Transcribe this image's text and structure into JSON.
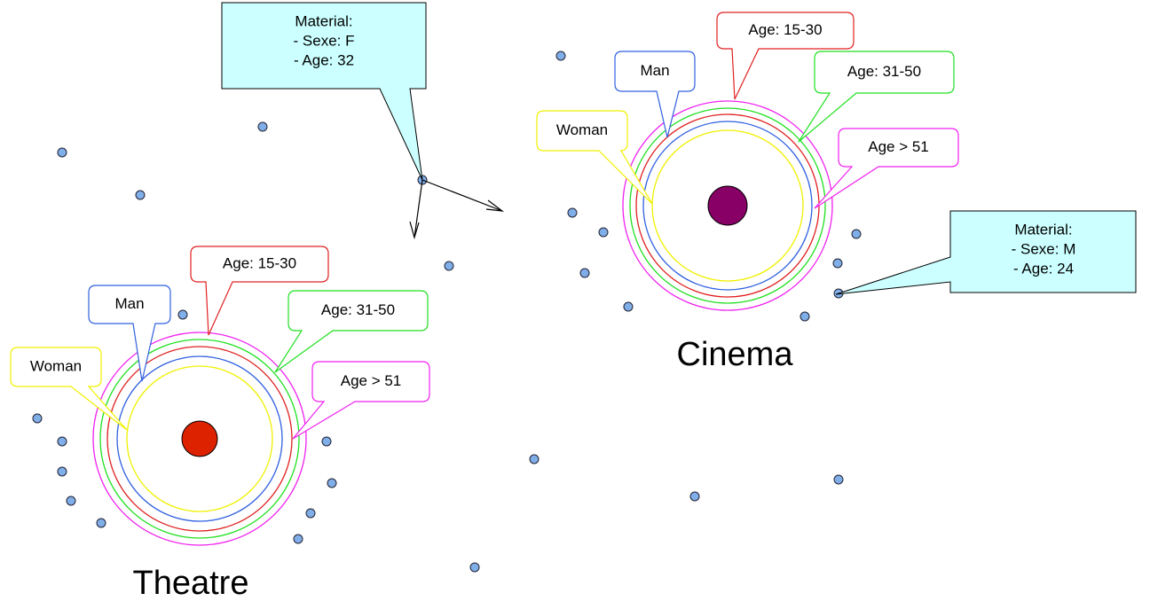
{
  "venues": [
    {
      "name": "Theatre",
      "labels": [
        "Woman",
        "Man",
        "Age: 15-30",
        "Age: 31-50",
        "Age > 51"
      ]
    },
    {
      "name": "Cinema",
      "labels": [
        "Woman",
        "Man",
        "Age: 15-30",
        "Age: 31-50",
        "Age > 51"
      ]
    }
  ],
  "callouts": [
    {
      "lines": [
        "Material:",
        "- Sexe: F",
        "- Age: 32"
      ]
    },
    {
      "lines": [
        "Material:",
        "- Sexe: M",
        "- Age: 24"
      ]
    }
  ]
}
